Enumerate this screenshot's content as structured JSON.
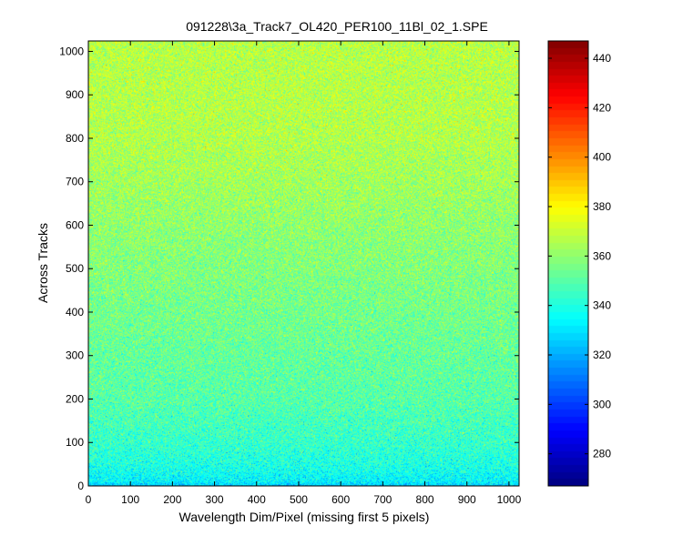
{
  "chart_data": {
    "type": "heatmap",
    "title": "091228\\3a_Track7_OL420_PER100_11Bl_02_1.SPE",
    "xlabel": "Wavelength Dim/Pixel (missing first 5 pixels)",
    "ylabel": "Across Tracks",
    "xlim": [
      0,
      1024
    ],
    "ylim": [
      0,
      1024
    ],
    "x_ticks": [
      "0",
      "100",
      "200",
      "300",
      "400",
      "500",
      "600",
      "700",
      "800",
      "900",
      "1000"
    ],
    "y_ticks": [
      "0",
      "100",
      "200",
      "300",
      "400",
      "500",
      "600",
      "700",
      "800",
      "900",
      "1000"
    ],
    "colorbar": {
      "colormap": "jet",
      "range": [
        267,
        447
      ],
      "ticks": [
        "280",
        "300",
        "320",
        "340",
        "360",
        "380",
        "400",
        "420",
        "440"
      ]
    },
    "intensity_profile": {
      "description_rows": [
        0,
        10,
        50,
        100,
        200,
        400,
        600,
        800,
        1024
      ],
      "mean_values": [
        325,
        333,
        340,
        344,
        350,
        355,
        360,
        366,
        367
      ],
      "noise_std": 8
    },
    "grid": false
  }
}
